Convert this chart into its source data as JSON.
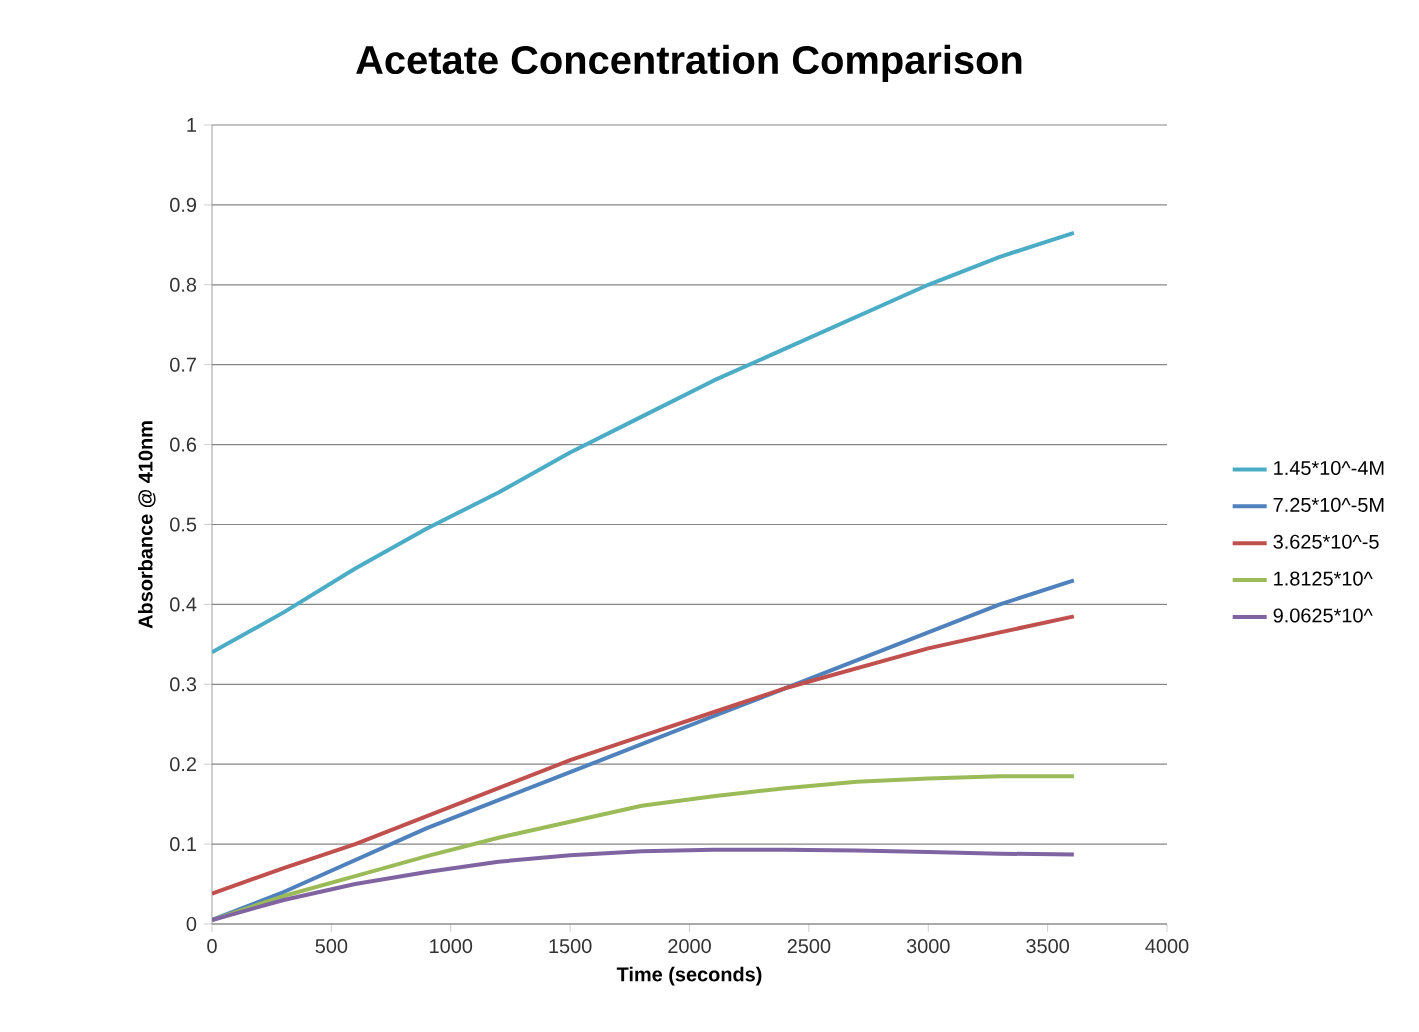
{
  "chart_data": {
    "type": "line",
    "title": "Acetate Concentration Comparison",
    "xlabel": "Time (seconds)",
    "ylabel": "Absorbance  @ 410nm",
    "x": [
      0,
      300,
      600,
      900,
      1200,
      1500,
      1800,
      2100,
      2400,
      2700,
      3000,
      3300,
      3610
    ],
    "series": [
      {
        "name": "1.45*10^-4M",
        "color": "#4bacc6",
        "values": [
          0.34,
          0.39,
          0.445,
          0.495,
          0.54,
          0.59,
          0.635,
          0.68,
          0.72,
          0.76,
          0.8,
          0.835,
          0.865
        ]
      },
      {
        "name": "7.25*10^-5M",
        "color": "#4f81bd",
        "values": [
          0.005,
          0.04,
          0.08,
          0.12,
          0.155,
          0.19,
          0.225,
          0.26,
          0.295,
          0.33,
          0.365,
          0.4,
          0.43
        ]
      },
      {
        "name": "3.625*10^-5",
        "color": "#c0504d",
        "values": [
          0.038,
          0.07,
          0.1,
          0.135,
          0.17,
          0.205,
          0.235,
          0.265,
          0.295,
          0.32,
          0.345,
          0.365,
          0.385
        ]
      },
      {
        "name": "1.8125*10^",
        "color": "#9bbb59",
        "values": [
          0.005,
          0.035,
          0.06,
          0.085,
          0.108,
          0.128,
          0.148,
          0.16,
          0.17,
          0.178,
          0.182,
          0.185,
          0.185
        ]
      },
      {
        "name": "9.0625*10^",
        "color": "#8064a2",
        "values": [
          0.005,
          0.03,
          0.05,
          0.065,
          0.078,
          0.086,
          0.091,
          0.093,
          0.093,
          0.092,
          0.09,
          0.088,
          0.087
        ]
      }
    ],
    "xlim": [
      0,
      4000
    ],
    "ylim": [
      0,
      1
    ],
    "xticks": [
      0,
      500,
      1000,
      1500,
      2000,
      2500,
      3000,
      3500,
      4000
    ],
    "yticks": [
      0,
      0.1,
      0.2,
      0.3,
      0.4,
      0.5,
      0.6,
      0.7,
      0.8,
      0.9,
      1
    ],
    "grid": "y",
    "legend": "right"
  }
}
